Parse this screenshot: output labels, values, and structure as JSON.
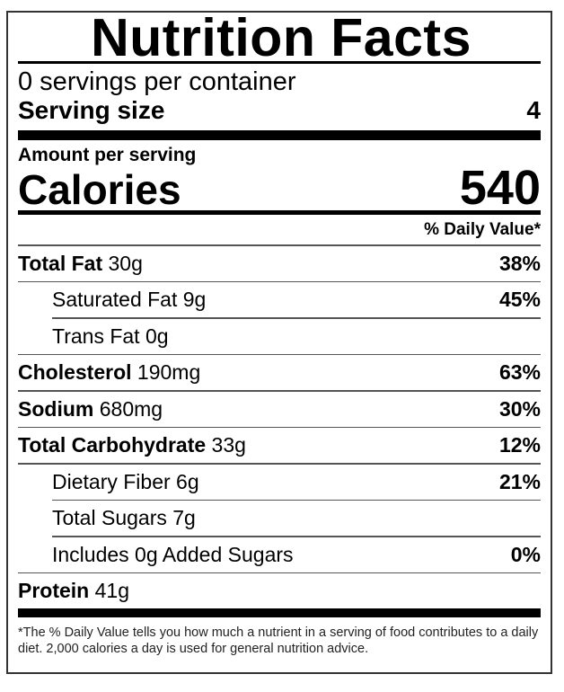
{
  "title": "Nutrition Facts",
  "servings_per_container": "0  servings per container",
  "serving_size_label": "Serving size",
  "serving_size_value": "4",
  "amount_per_serving": "Amount per serving",
  "calories_label": "Calories",
  "calories_value": "540",
  "daily_value_header": "% Daily Value*",
  "nutrients": [
    {
      "name": "Total Fat",
      "amount": "30g",
      "dv": "38%",
      "bold": true
    },
    {
      "name": "Saturated Fat",
      "amount": "9g",
      "dv": "45%",
      "bold": false
    },
    {
      "name": "Trans Fat",
      "amount": "0g",
      "dv": "",
      "bold": false
    },
    {
      "name": "Cholesterol",
      "amount": "190mg",
      "dv": "63%",
      "bold": true
    },
    {
      "name": "Sodium",
      "amount": "680mg",
      "dv": "30%",
      "bold": true
    },
    {
      "name": "Total Carbohydrate",
      "amount": "33g",
      "dv": "12%",
      "bold": true
    },
    {
      "name": "Dietary Fiber",
      "amount": "6g",
      "dv": "21%",
      "bold": false
    },
    {
      "name": "Total Sugars",
      "amount": "7g",
      "dv": "",
      "bold": false
    },
    {
      "name": "Includes 0g Added Sugars",
      "amount": "",
      "dv": "0%",
      "bold": false
    },
    {
      "name": "Protein",
      "amount": "41g",
      "dv": "",
      "bold": true
    }
  ],
  "footnote": "*The % Daily Value tells you how much a nutrient in a serving of food contributes to a daily diet. 2,000 calories a day is used for general nutrition advice."
}
